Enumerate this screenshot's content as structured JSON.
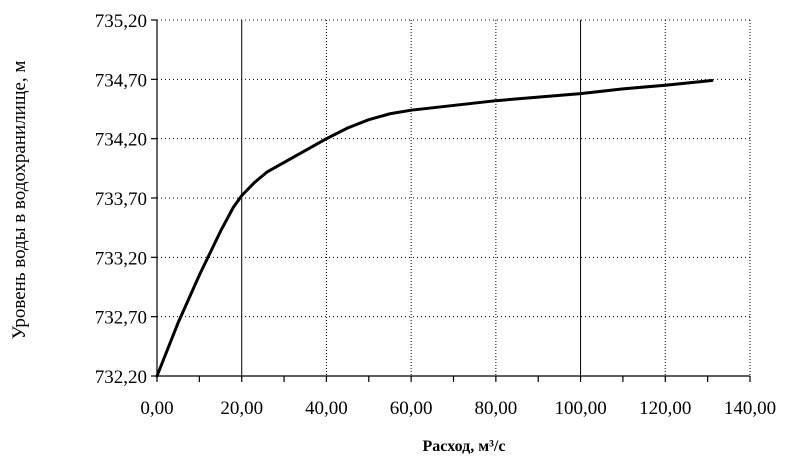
{
  "chart_data": {
    "type": "line",
    "title": "",
    "xlabel": "Расход, м³/с",
    "ylabel": "Уровень воды в водохранилище, м",
    "xlim": [
      0,
      140
    ],
    "ylim": [
      732.2,
      735.2
    ],
    "x_ticks": [
      0,
      20,
      40,
      60,
      80,
      100,
      120,
      140
    ],
    "x_tick_labels": [
      "0,00",
      "20,00",
      "40,00",
      "60,00",
      "80,00",
      "100,00",
      "120,00",
      "140,00"
    ],
    "y_ticks": [
      732.2,
      732.7,
      733.2,
      733.7,
      734.2,
      734.7,
      735.2
    ],
    "y_tick_labels": [
      "732,20",
      "732,70",
      "733,20",
      "733,70",
      "734,20",
      "734,70",
      "735,20"
    ],
    "grid": true,
    "legend": "none",
    "series": [
      {
        "x": [
          0,
          5,
          10,
          15,
          18,
          20,
          23,
          26,
          30,
          35,
          40,
          45,
          50,
          55,
          60,
          70,
          80,
          90,
          100,
          110,
          120,
          131
        ],
        "values": [
          732.2,
          732.65,
          733.05,
          733.42,
          733.62,
          733.72,
          733.83,
          733.92,
          734.0,
          734.1,
          734.2,
          734.29,
          734.36,
          734.41,
          734.44,
          734.48,
          734.52,
          734.55,
          734.58,
          734.62,
          734.65,
          734.69
        ]
      }
    ]
  }
}
